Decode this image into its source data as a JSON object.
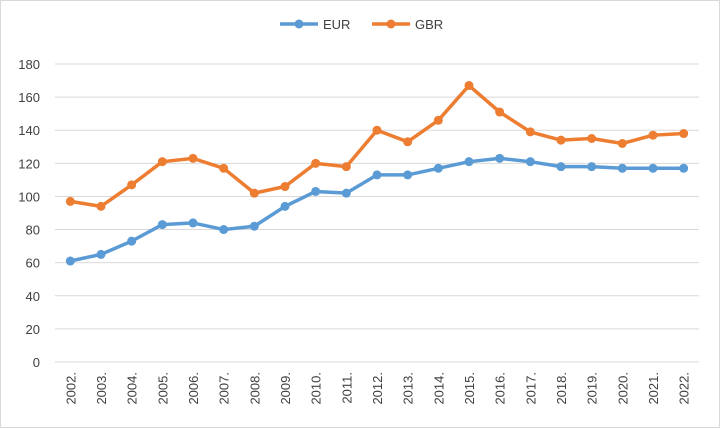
{
  "chart_data": {
    "type": "line",
    "categories": [
      "2002.",
      "2003.",
      "2004.",
      "2005.",
      "2006.",
      "2007.",
      "2008.",
      "2009.",
      "2010.",
      "2011.",
      "2012.",
      "2013.",
      "2014.",
      "2015.",
      "2016.",
      "2017.",
      "2018.",
      "2019.",
      "2020.",
      "2021.",
      "2022."
    ],
    "series": [
      {
        "name": "EUR",
        "color": "#5b9bd5",
        "values": [
          61,
          65,
          73,
          83,
          84,
          80,
          82,
          94,
          103,
          102,
          113,
          113,
          117,
          121,
          123,
          121,
          118,
          118,
          117,
          117,
          117
        ]
      },
      {
        "name": "GBR",
        "color": "#ed7d31",
        "values": [
          97,
          94,
          107,
          121,
          123,
          117,
          102,
          106,
          120,
          118,
          140,
          133,
          146,
          167,
          151,
          139,
          134,
          135,
          132,
          137,
          138
        ]
      }
    ],
    "ylim": [
      0,
      180
    ],
    "yticks": [
      0,
      20,
      40,
      60,
      80,
      100,
      120,
      140,
      160,
      180
    ],
    "grid": true,
    "legend": "top"
  }
}
